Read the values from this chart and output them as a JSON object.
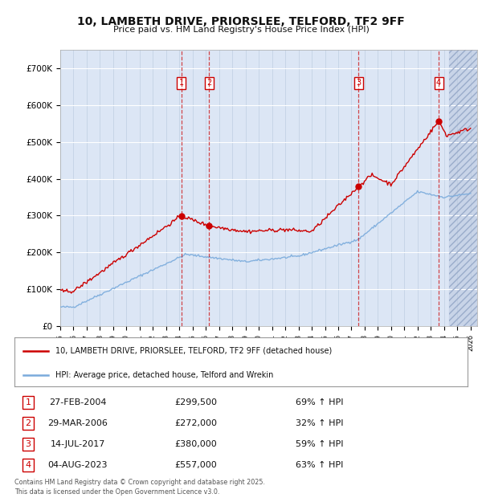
{
  "title": "10, LAMBETH DRIVE, PRIORSLEE, TELFORD, TF2 9FF",
  "subtitle": "Price paid vs. HM Land Registry's House Price Index (HPI)",
  "ylim": [
    0,
    750000
  ],
  "yticks": [
    0,
    100000,
    200000,
    300000,
    400000,
    500000,
    600000,
    700000
  ],
  "ytick_labels": [
    "£0",
    "£100K",
    "£200K",
    "£300K",
    "£400K",
    "£500K",
    "£600K",
    "£700K"
  ],
  "background_color": "#ffffff",
  "plot_bg_color": "#dce6f5",
  "grid_color": "#ffffff",
  "sale_color": "#cc0000",
  "hpi_color": "#7aabdc",
  "sale_dates": [
    2004.15,
    2006.24,
    2017.54,
    2023.59
  ],
  "sale_prices": [
    299500,
    272000,
    380000,
    557000
  ],
  "sale_labels": [
    "1",
    "2",
    "3",
    "4"
  ],
  "sale_pct": [
    "69% ↑ HPI",
    "32% ↑ HPI",
    "59% ↑ HPI",
    "63% ↑ HPI"
  ],
  "sale_display_dates": [
    "27-FEB-2004",
    "29-MAR-2006",
    "14-JUL-2017",
    "04-AUG-2023"
  ],
  "sale_display_prices": [
    "£299,500",
    "£272,000",
    "£380,000",
    "£557,000"
  ],
  "legend_sale_label": "10, LAMBETH DRIVE, PRIORSLEE, TELFORD, TF2 9FF (detached house)",
  "legend_hpi_label": "HPI: Average price, detached house, Telford and Wrekin",
  "footer_line1": "Contains HM Land Registry data © Crown copyright and database right 2025.",
  "footer_line2": "This data is licensed under the Open Government Licence v3.0."
}
